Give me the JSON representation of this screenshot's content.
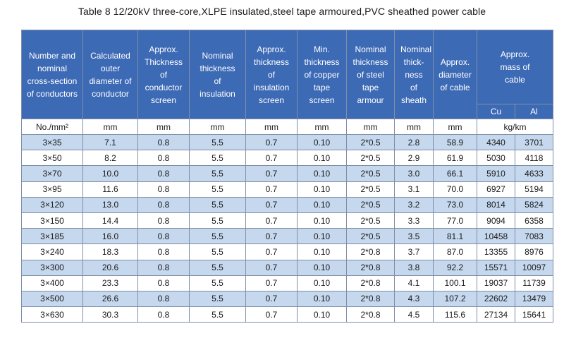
{
  "title": "Table 8    12/20kV three-core,XLPE insulated,steel tape armoured,PVC sheathed power cable",
  "headers": [
    "Number and nominal cross-section of conductors",
    "Calculated outer diameter of conductor",
    "Approx. Thickness of conductor screen",
    "Nominal thickness of insulation",
    "Approx. thickness of insulation screen",
    "Min. thickness of copper tape screen",
    "Nominal thickness of steel tape armour",
    "Nominal thick-ness of sheath",
    "Approx. diameter of cable",
    "Approx. mass of cable"
  ],
  "mass_sub": [
    "Cu",
    "Al"
  ],
  "units": [
    "No./mm²",
    "mm",
    "mm",
    "mm",
    "mm",
    "mm",
    "mm",
    "mm",
    "mm",
    "kg/km"
  ],
  "rows": [
    [
      "3×35",
      "7.1",
      "0.8",
      "5.5",
      "0.7",
      "0.10",
      "2*0.5",
      "2.8",
      "58.9",
      "4340",
      "3701"
    ],
    [
      "3×50",
      "8.2",
      "0.8",
      "5.5",
      "0.7",
      "0.10",
      "2*0.5",
      "2.9",
      "61.9",
      "5030",
      "4118"
    ],
    [
      "3×70",
      "10.0",
      "0.8",
      "5.5",
      "0.7",
      "0.10",
      "2*0.5",
      "3.0",
      "66.1",
      "5910",
      "4633"
    ],
    [
      "3×95",
      "11.6",
      "0.8",
      "5.5",
      "0.7",
      "0.10",
      "2*0.5",
      "3.1",
      "70.0",
      "6927",
      "5194"
    ],
    [
      "3×120",
      "13.0",
      "0.8",
      "5.5",
      "0.7",
      "0.10",
      "2*0.5",
      "3.2",
      "73.0",
      "8014",
      "5824"
    ],
    [
      "3×150",
      "14.4",
      "0.8",
      "5.5",
      "0.7",
      "0.10",
      "2*0.5",
      "3.3",
      "77.0",
      "9094",
      "6358"
    ],
    [
      "3×185",
      "16.0",
      "0.8",
      "5.5",
      "0.7",
      "0.10",
      "2*0.5",
      "3.5",
      "81.1",
      "10458",
      "7083"
    ],
    [
      "3×240",
      "18.3",
      "0.8",
      "5.5",
      "0.7",
      "0.10",
      "2*0.8",
      "3.7",
      "87.0",
      "13355",
      "8976"
    ],
    [
      "3×300",
      "20.6",
      "0.8",
      "5.5",
      "0.7",
      "0.10",
      "2*0.8",
      "3.8",
      "92.2",
      "15571",
      "10097"
    ],
    [
      "3×400",
      "23.3",
      "0.8",
      "5.5",
      "0.7",
      "0.10",
      "2*0.8",
      "4.1",
      "100.1",
      "19037",
      "11739"
    ],
    [
      "3×500",
      "26.6",
      "0.8",
      "5.5",
      "0.7",
      "0.10",
      "2*0.8",
      "4.3",
      "107.2",
      "22602",
      "13479"
    ],
    [
      "3×630",
      "30.3",
      "0.8",
      "5.5",
      "0.7",
      "0.10",
      "2*0.8",
      "4.5",
      "115.6",
      "27134",
      "15641"
    ]
  ],
  "colors": {
    "header_bg": "#3d6ab5",
    "band_bg": "#c6d8ee",
    "border": "#7f8fa6"
  }
}
